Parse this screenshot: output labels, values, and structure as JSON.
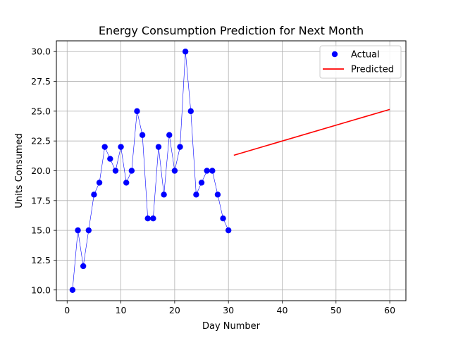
{
  "chart_data": {
    "type": "scatter",
    "title": "Energy Consumption Prediction for Next Month",
    "xlabel": "Day Number",
    "ylabel": "Units Consumed",
    "xlim": [
      -2,
      63
    ],
    "ylim": [
      9.1,
      30.9
    ],
    "xticks": [
      0,
      10,
      20,
      30,
      40,
      50,
      60
    ],
    "yticks": [
      10.0,
      12.5,
      15.0,
      17.5,
      20.0,
      22.5,
      25.0,
      27.5,
      30.0
    ],
    "ytick_labels": [
      "10.0",
      "12.5",
      "15.0",
      "17.5",
      "20.0",
      "22.5",
      "25.0",
      "27.5",
      "30.0"
    ],
    "grid": true,
    "legend_position": "top-right",
    "series": [
      {
        "name": "Actual",
        "kind": "scatter-with-line",
        "color": "#0000ff",
        "x": [
          1,
          2,
          3,
          4,
          5,
          6,
          7,
          8,
          9,
          10,
          11,
          12,
          13,
          14,
          15,
          16,
          17,
          18,
          19,
          20,
          21,
          22,
          23,
          24,
          25,
          26,
          27,
          28,
          29,
          30
        ],
        "y": [
          10,
          15,
          12,
          15,
          18,
          19,
          22,
          21,
          20,
          22,
          19,
          20,
          25,
          23,
          16,
          16,
          22,
          18,
          23,
          20,
          22,
          30,
          25,
          18,
          19,
          20,
          20,
          18,
          16,
          15
        ]
      },
      {
        "name": "Predicted",
        "kind": "line",
        "color": "#ff0000",
        "x": [
          31,
          60
        ],
        "y": [
          21.3,
          25.15
        ]
      }
    ]
  }
}
